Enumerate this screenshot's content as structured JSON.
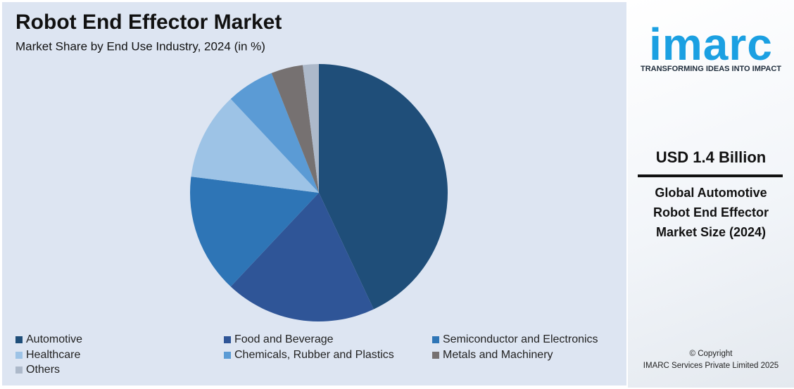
{
  "chart_data": {
    "type": "pie",
    "title": "Robot End Effector Market",
    "subtitle": "Market Share by End Use Industry, 2024 (in %)",
    "categories": [
      "Automotive",
      "Food and Beverage",
      "Semiconductor and Electronics",
      "Healthcare",
      "Chemicals, Rubber and Plastics",
      "Metals and Machinery",
      "Others"
    ],
    "values": [
      43,
      19,
      15,
      11,
      6,
      4,
      2
    ],
    "colors": [
      "#1f4e79",
      "#2f5597",
      "#2e75b6",
      "#9dc3e6",
      "#5b9bd5",
      "#767171",
      "#adb9ca"
    ],
    "legend": "bottom"
  },
  "sidebar": {
    "brand": "imarc",
    "tagline": "TRANSFORMING IDEAS INTO IMPACT",
    "headline": "USD 1.4 Billion",
    "description": "Global Automotive Robot End Effector Market Size (2024)",
    "copyright": [
      "© Copyright",
      "IMARC Services Private Limited 2025"
    ]
  }
}
